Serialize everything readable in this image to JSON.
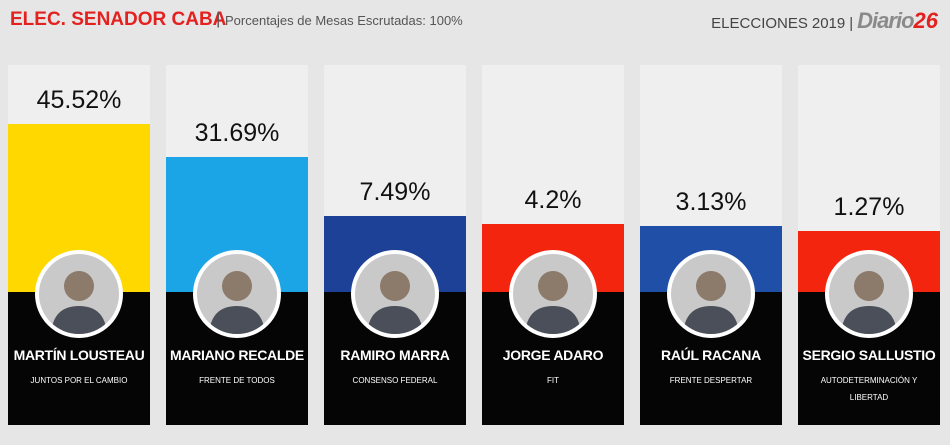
{
  "chart_data": {
    "type": "bar",
    "title": "ELEC. SENADOR CABA",
    "subtitle": "Porcentajes de Mesas Escrutadas: 100%",
    "categories": [
      "MARTÍN LOUSTEAU",
      "MARIANO RECALDE",
      "RAMIRO MARRA",
      "JORGE ADARO",
      "RAÚL RACANA",
      "SERGIO SALLUSTIO"
    ],
    "parties": [
      "JUNTOS POR EL CAMBIO",
      "FRENTE DE TODOS",
      "CONSENSO FEDERAL",
      "FIT",
      "FRENTE DESPERTAR",
      "AUTODETERMINACIÓN Y LIBERTAD"
    ],
    "values": [
      45.52,
      31.69,
      7.49,
      4.2,
      3.13,
      1.27
    ],
    "value_labels": [
      "45.52%",
      "31.69%",
      "7.49%",
      "4.2%",
      "3.13%",
      "1.27%"
    ],
    "colors": [
      "#ffd800",
      "#1ba5e6",
      "#1d4196",
      "#f3250f",
      "#1f4fa6",
      "#f3250f"
    ]
  },
  "header": {
    "election": "ELECCIONES",
    "year": "2019",
    "brand": "Diario",
    "brand_number": "26"
  }
}
